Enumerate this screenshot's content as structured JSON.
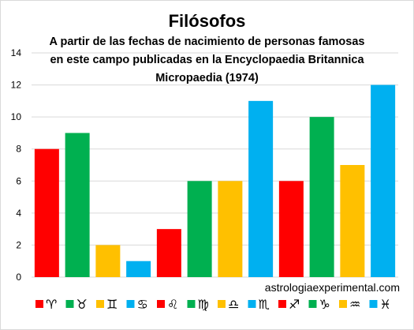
{
  "chart_data": {
    "type": "bar",
    "title": "Filósofos",
    "subtitle_lines": [
      "A partir de las fechas de nacimiento de personas famosas",
      "en este campo publicadas  en la Encyclopaedia  Britannica",
      "Micropaedia (1974)"
    ],
    "categories": [
      "♈",
      "♉",
      "♊",
      "♋",
      "♌",
      "♍",
      "♎",
      "♏",
      "♐",
      "♑",
      "♒",
      "♓"
    ],
    "values": [
      8,
      9,
      2,
      1,
      3,
      6,
      6,
      11,
      6,
      10,
      7,
      12
    ],
    "bar_colors": [
      "#ff0000",
      "#00b050",
      "#ffc000",
      "#00b0f0",
      "#ff0000",
      "#00b050",
      "#ffc000",
      "#00b0f0",
      "#ff0000",
      "#00b050",
      "#ffc000",
      "#00b0f0"
    ],
    "ylim": [
      0,
      14
    ],
    "yticks": [
      "0",
      "2",
      "4",
      "6",
      "8",
      "10",
      "12",
      "14"
    ],
    "xlabel": "",
    "ylabel": "",
    "grid": true,
    "legend_position": "bottom"
  },
  "watermark": "astrologiaexperimental.com"
}
